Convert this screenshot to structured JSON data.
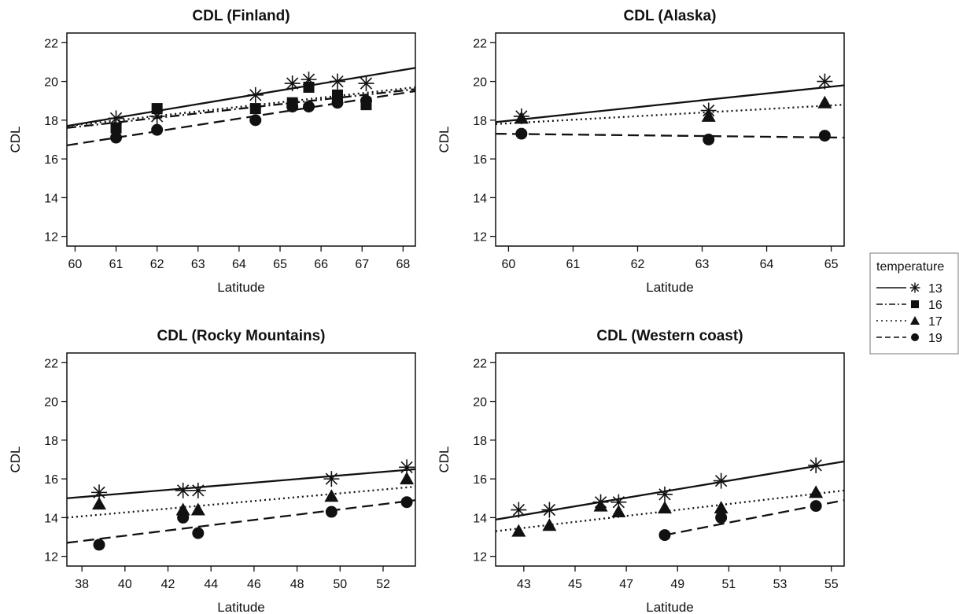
{
  "legend": {
    "title": "temperature",
    "entries": [
      {
        "label": "13",
        "line": "solid",
        "marker": "asterisk"
      },
      {
        "label": "16",
        "line": "dotdash",
        "marker": "square"
      },
      {
        "label": "17",
        "line": "dotted",
        "marker": "triangle"
      },
      {
        "label": "19",
        "line": "dashed",
        "marker": "circle"
      }
    ]
  },
  "chart_data": [
    {
      "type": "scatter",
      "title": "CDL (Finland)",
      "xlabel": "Latitude",
      "ylabel": "CDL",
      "xlim": [
        59.8,
        68.3
      ],
      "ylim": [
        11.5,
        22.5
      ],
      "xticks": [
        60,
        61,
        62,
        63,
        64,
        65,
        66,
        67,
        68
      ],
      "yticks": [
        12,
        14,
        16,
        18,
        20,
        22
      ],
      "grid": false,
      "series": [
        {
          "name": "13",
          "points": [
            [
              61.0,
              18.1
            ],
            [
              62.0,
              18.2
            ],
            [
              64.4,
              19.3
            ],
            [
              65.3,
              19.9
            ],
            [
              65.7,
              20.1
            ],
            [
              66.4,
              20.0
            ],
            [
              67.1,
              19.9
            ]
          ],
          "line": [
            [
              59.8,
              17.7
            ],
            [
              68.3,
              20.7
            ]
          ]
        },
        {
          "name": "16",
          "points": [
            [
              61.0,
              17.6
            ],
            [
              62.0,
              18.6
            ],
            [
              64.4,
              18.6
            ],
            [
              65.3,
              18.9
            ],
            [
              65.7,
              19.7
            ],
            [
              66.4,
              19.3
            ],
            [
              67.1,
              18.8
            ]
          ],
          "line": [
            [
              59.8,
              17.6
            ],
            [
              68.3,
              19.6
            ]
          ]
        },
        {
          "name": "17",
          "points": [],
          "line": [
            [
              59.8,
              17.7
            ],
            [
              68.3,
              19.7
            ]
          ]
        },
        {
          "name": "19",
          "points": [
            [
              61.0,
              17.1
            ],
            [
              62.0,
              17.5
            ],
            [
              64.4,
              18.0
            ],
            [
              65.3,
              18.7
            ],
            [
              65.7,
              18.7
            ],
            [
              66.4,
              18.9
            ],
            [
              67.1,
              19.0
            ]
          ],
          "line": [
            [
              59.8,
              16.7
            ],
            [
              68.3,
              19.5
            ]
          ]
        }
      ]
    },
    {
      "type": "scatter",
      "title": "CDL (Alaska)",
      "xlabel": "Latitude",
      "ylabel": "CDL",
      "xlim": [
        59.8,
        65.2
      ],
      "ylim": [
        11.5,
        22.5
      ],
      "xticks": [
        60,
        61,
        62,
        63,
        64,
        65
      ],
      "yticks": [
        12,
        14,
        16,
        18,
        20,
        22
      ],
      "grid": false,
      "series": [
        {
          "name": "13",
          "points": [
            [
              60.2,
              18.2
            ],
            [
              63.1,
              18.5
            ],
            [
              64.9,
              20.0
            ]
          ],
          "line": [
            [
              59.8,
              17.9
            ],
            [
              65.2,
              19.8
            ]
          ]
        },
        {
          "name": "16",
          "points": [],
          "line": []
        },
        {
          "name": "17",
          "points": [
            [
              60.2,
              18.1
            ],
            [
              63.1,
              18.2
            ],
            [
              64.9,
              18.9
            ]
          ],
          "line": [
            [
              59.8,
              17.8
            ],
            [
              65.2,
              18.8
            ]
          ]
        },
        {
          "name": "19",
          "points": [
            [
              60.2,
              17.3
            ],
            [
              63.1,
              17.0
            ],
            [
              64.9,
              17.2
            ]
          ],
          "line": [
            [
              59.8,
              17.3
            ],
            [
              65.2,
              17.1
            ]
          ]
        }
      ]
    },
    {
      "type": "scatter",
      "title": "CDL (Rocky Mountains)",
      "xlabel": "Latitude",
      "ylabel": "CDL",
      "xlim": [
        37.3,
        53.5
      ],
      "ylim": [
        11.5,
        22.5
      ],
      "xticks": [
        38,
        40,
        42,
        44,
        46,
        48,
        50,
        52
      ],
      "yticks": [
        12,
        14,
        16,
        18,
        20,
        22
      ],
      "grid": false,
      "series": [
        {
          "name": "13",
          "points": [
            [
              38.8,
              15.3
            ],
            [
              42.7,
              15.4
            ],
            [
              43.4,
              15.4
            ],
            [
              49.6,
              16.0
            ],
            [
              53.1,
              16.6
            ]
          ],
          "line": [
            [
              37.3,
              15.0
            ],
            [
              53.5,
              16.5
            ]
          ]
        },
        {
          "name": "16",
          "points": [],
          "line": []
        },
        {
          "name": "17",
          "points": [
            [
              38.8,
              14.7
            ],
            [
              42.7,
              14.4
            ],
            [
              43.4,
              14.4
            ],
            [
              49.6,
              15.1
            ],
            [
              53.1,
              16.0
            ]
          ],
          "line": [
            [
              37.3,
              14.0
            ],
            [
              53.5,
              15.6
            ]
          ]
        },
        {
          "name": "19",
          "points": [
            [
              38.8,
              12.6
            ],
            [
              42.7,
              14.0
            ],
            [
              43.4,
              13.2
            ],
            [
              49.6,
              14.3
            ],
            [
              53.1,
              14.8
            ]
          ],
          "line": [
            [
              37.3,
              12.7
            ],
            [
              53.5,
              14.9
            ]
          ]
        }
      ]
    },
    {
      "type": "scatter",
      "title": "CDL (Western coast)",
      "xlabel": "Latitude",
      "ylabel": "CDL",
      "xlim": [
        41.9,
        55.5
      ],
      "ylim": [
        11.5,
        22.5
      ],
      "xticks": [
        43,
        45,
        47,
        49,
        51,
        53,
        55
      ],
      "yticks": [
        12,
        14,
        16,
        18,
        20,
        22
      ],
      "grid": false,
      "series": [
        {
          "name": "13",
          "points": [
            [
              42.8,
              14.4
            ],
            [
              44.0,
              14.4
            ],
            [
              46.0,
              14.8
            ],
            [
              46.7,
              14.8
            ],
            [
              48.5,
              15.2
            ],
            [
              50.7,
              15.9
            ],
            [
              54.4,
              16.7
            ]
          ],
          "line": [
            [
              41.9,
              13.9
            ],
            [
              55.5,
              16.9
            ]
          ]
        },
        {
          "name": "16",
          "points": [],
          "line": []
        },
        {
          "name": "17",
          "points": [
            [
              42.8,
              13.3
            ],
            [
              44.0,
              13.6
            ],
            [
              46.0,
              14.6
            ],
            [
              46.7,
              14.3
            ],
            [
              48.5,
              14.5
            ],
            [
              50.7,
              14.5
            ],
            [
              54.4,
              15.3
            ]
          ],
          "line": [
            [
              41.9,
              13.3
            ],
            [
              55.5,
              15.4
            ]
          ]
        },
        {
          "name": "19",
          "points": [
            [
              48.5,
              13.1
            ],
            [
              50.7,
              14.0
            ],
            [
              54.4,
              14.6
            ]
          ],
          "line": [
            [
              48.5,
              13.1
            ],
            [
              55.5,
              14.9
            ]
          ]
        }
      ]
    }
  ]
}
